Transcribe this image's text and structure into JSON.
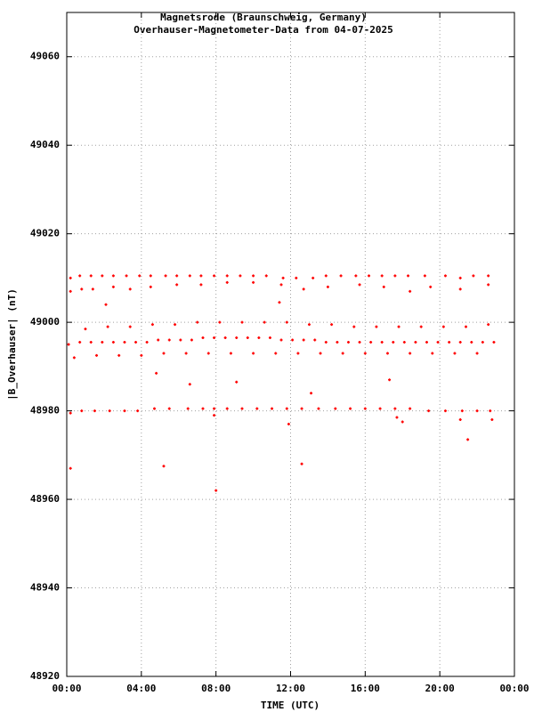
{
  "chart_data": {
    "type": "scatter",
    "title": "Magnetsrode (Braunschweig, Germany)",
    "subtitle": "Overhauser-Magnetometer-Data from 04-07-2025",
    "x_label": "TIME (UTC)",
    "y_label": "|B_Overhauser| (nT)",
    "xlim": [
      0,
      24
    ],
    "ylim": [
      48920,
      49070
    ],
    "xticks": [
      {
        "value": 0,
        "label": "00:00"
      },
      {
        "value": 4,
        "label": "04:00"
      },
      {
        "value": 8,
        "label": "08:00"
      },
      {
        "value": 12,
        "label": "12:00"
      },
      {
        "value": 16,
        "label": "16:00"
      },
      {
        "value": 20,
        "label": "20:00"
      },
      {
        "value": 24,
        "label": "00:00"
      }
    ],
    "yticks": [
      48920,
      48940,
      48960,
      48980,
      49000,
      49020,
      49040,
      49060
    ],
    "grid": true,
    "series": [
      {
        "color": "#ff0000",
        "x": [
          0.2,
          0.7,
          1.3,
          1.9,
          2.5,
          3.2,
          3.9,
          4.5,
          5.3,
          5.9,
          6.6,
          7.2,
          7.9,
          8.6,
          9.3,
          10.0,
          10.7,
          11.6,
          12.3,
          13.2,
          13.9,
          14.7,
          15.5,
          16.2,
          16.9,
          17.6,
          18.3,
          19.2,
          20.3,
          21.1,
          21.8,
          22.6
        ],
        "values": [
          49010,
          49010.5,
          49010.5,
          49010.5,
          49010.5,
          49010.5,
          49010.5,
          49010.5,
          49010.5,
          49010.5,
          49010.5,
          49010.5,
          49010.5,
          49010.5,
          49010.5,
          49010.5,
          49010.5,
          49010,
          49010,
          49010,
          49010.5,
          49010.5,
          49010.5,
          49010.5,
          49010.5,
          49010.5,
          49010.5,
          49010.5,
          49010.5,
          49010,
          49010.5,
          49010.5
        ]
      },
      {
        "color": "#ff0000",
        "x": [
          0.2,
          0.8,
          1.4,
          2.5,
          3.4,
          4.5,
          5.9,
          7.2,
          8.6,
          10.0,
          11.5,
          12.7,
          14.0,
          15.7,
          17.0,
          18.4,
          19.5,
          21.1,
          22.6
        ],
        "values": [
          49007,
          49007.5,
          49007.5,
          49008,
          49007.5,
          49008,
          49008.5,
          49008.5,
          49009,
          49009,
          49008.5,
          49007.5,
          49008,
          49008.5,
          49008,
          49007,
          49008,
          49007.5,
          49008.5
        ]
      },
      {
        "color": "#ff0000",
        "x": [
          0.1,
          0.7,
          1.3,
          1.9,
          2.5,
          3.1,
          3.7,
          4.3,
          4.9,
          5.5,
          6.1,
          6.7,
          7.3,
          7.9,
          8.5,
          9.1,
          9.7,
          10.3,
          10.9,
          11.5,
          12.1,
          12.7,
          13.3,
          13.9,
          14.5,
          15.1,
          15.7,
          16.3,
          16.9,
          17.5,
          18.1,
          18.7,
          19.3,
          19.9,
          20.5,
          21.1,
          21.7,
          22.3,
          22.9
        ],
        "values": [
          48995,
          48995.5,
          48995.5,
          48995.5,
          48995.5,
          48995.5,
          48995.5,
          48995.5,
          48996,
          48996,
          48996,
          48996,
          48996.5,
          48996.5,
          48996.5,
          48996.5,
          48996.5,
          48996.5,
          48996.5,
          48996,
          48996,
          48996,
          48996,
          48995.5,
          48995.5,
          48995.5,
          48995.5,
          48995.5,
          48995.5,
          48995.5,
          48995.5,
          48995.5,
          48995.5,
          48995.5,
          48995.5,
          48995.5,
          48995.5,
          48995.5,
          48995.5
        ]
      },
      {
        "color": "#ff0000",
        "x": [
          0.4,
          1.6,
          2.8,
          4.0,
          5.2,
          6.4,
          7.6,
          8.8,
          10.0,
          11.2,
          12.4,
          13.6,
          14.8,
          16.0,
          17.2,
          18.4,
          19.6,
          20.8,
          22.0
        ],
        "values": [
          48992,
          48992.5,
          48992.5,
          48992.5,
          48993,
          48993,
          48993,
          48993,
          48993,
          48993,
          48993,
          48993,
          48993,
          48993,
          48993,
          48993,
          48993,
          48993,
          48993
        ]
      },
      {
        "color": "#ff0000",
        "x": [
          1.0,
          2.2,
          3.4,
          4.6,
          5.8,
          7.0,
          8.2,
          9.4,
          10.6,
          11.8,
          13.0,
          14.2,
          15.4,
          16.6,
          17.8,
          19.0,
          20.2,
          21.4,
          22.6
        ],
        "values": [
          48998.5,
          48999,
          48999,
          48999.5,
          48999.5,
          49000,
          49000,
          49000,
          49000,
          49000,
          48999.5,
          48999.5,
          48999,
          48999,
          48999,
          48999,
          48999,
          48999,
          48999.5
        ]
      },
      {
        "color": "#ff0000",
        "x": [
          0.2,
          0.8,
          1.5,
          2.3,
          3.1,
          3.8,
          4.7,
          5.5,
          6.5,
          7.3,
          7.9,
          8.6,
          9.4,
          10.2,
          11.0,
          11.8,
          12.6,
          13.5,
          14.4,
          15.2,
          16.0,
          16.8,
          17.6,
          18.4,
          19.4,
          20.3,
          21.2,
          22.0,
          22.7
        ],
        "values": [
          48979.5,
          48980,
          48980,
          48980,
          48980,
          48980,
          48980.5,
          48980.5,
          48980.5,
          48980.5,
          48980.5,
          48980.5,
          48980.5,
          48980.5,
          48980.5,
          48980.5,
          48980.5,
          48980.5,
          48980.5,
          48980.5,
          48980.5,
          48980.5,
          48980.5,
          48980.5,
          48980,
          48980,
          48980,
          48980,
          48980
        ]
      },
      {
        "color": "#ff0000",
        "x": [
          0.2,
          5.2,
          8.0,
          12.6,
          21.5,
          11.4,
          2.1,
          6.6,
          9.1,
          18.0,
          11.9,
          17.3,
          4.8,
          7.9,
          13.1,
          17.7,
          21.1,
          22.8
        ],
        "values": [
          48967,
          48967.5,
          48962,
          48968,
          48973.5,
          49004.5,
          49004,
          48986,
          48986.5,
          48977.5,
          48977,
          48987,
          48988.5,
          48979,
          48984,
          48978.5,
          48978,
          48978
        ]
      }
    ]
  }
}
